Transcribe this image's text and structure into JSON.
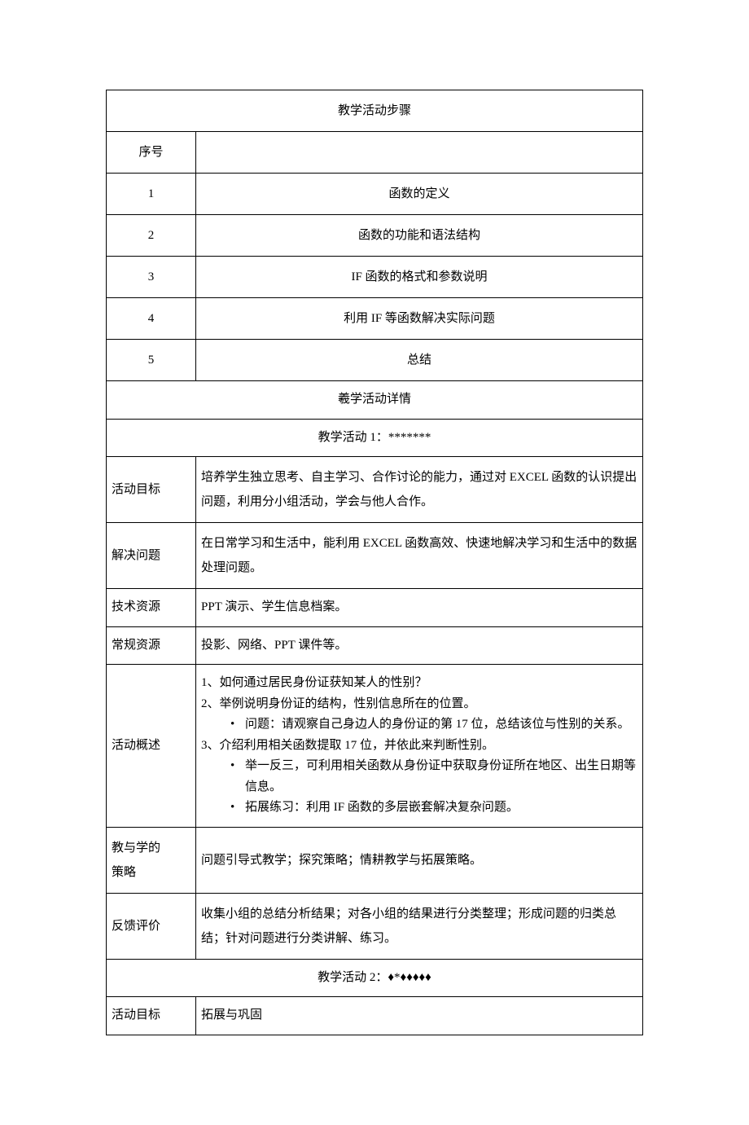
{
  "stepsHeader": "教学活动步骤",
  "seqLabel": "序号",
  "steps": [
    {
      "n": "1",
      "title": "函数的定义"
    },
    {
      "n": "2",
      "title": "函数的功能和语法结构"
    },
    {
      "n": "3",
      "title": "IF 函数的格式和参数说明"
    },
    {
      "n": "4",
      "title": "利用 IF 等函数解决实际问题"
    },
    {
      "n": "5",
      "title": "总结"
    }
  ],
  "detailsHeader": "羲学活动详情",
  "activity1Header": "教学活动 1：*******",
  "labels": {
    "goal": "活动目标",
    "problem": "解决问题",
    "tech": "技术资源",
    "regular": "常规资源",
    "overview": "活动概述",
    "strategy1": "教与学的",
    "strategy2": "策略",
    "feedback": "反馈评价"
  },
  "a1": {
    "goal": "培养学生独立思考、自主学习、合作讨论的能力，通过对 EXCEL 函数的认识提出问题，利用分小组活动，学会与他人合作。",
    "problem": "在日常学习和生活中，能利用 EXCEL 函数高效、快速地解决学习和生活中的数据处理问题。",
    "tech": "PPT 演示、学生信息档案。",
    "regular": "投影、网络、PPT 课件等。",
    "overview": {
      "line1": "1、如何通过居民身份证获知某人的性别？",
      "line2": "2、举例说明身份证的结构，性别信息所在的位置。",
      "bullet2a": "问题：请观察自己身边人的身份证的第 17 位，总结该位与性别的关系。",
      "line3": "3、介绍利用相关函数提取 17 位，并依此来判断性别。",
      "bullet3a": "举一反三，可利用相关函数从身份证中获取身份证所在地区、出生日期等信息。",
      "bullet3b": "拓展练习：利用 IF 函数的多层嵌套解决复杂问题。"
    },
    "strategy": "问题引导式教学；探究策略；情耕教学与拓展策略。",
    "feedback": "收集小组的总结分析结果；对各小组的结果进行分类整理；形成问题的归类总结；针对问题进行分类讲解、练习。"
  },
  "activity2Header": "教学活动 2：♦*♦♦♦♦♦",
  "a2": {
    "goal": "拓展与巩固"
  }
}
